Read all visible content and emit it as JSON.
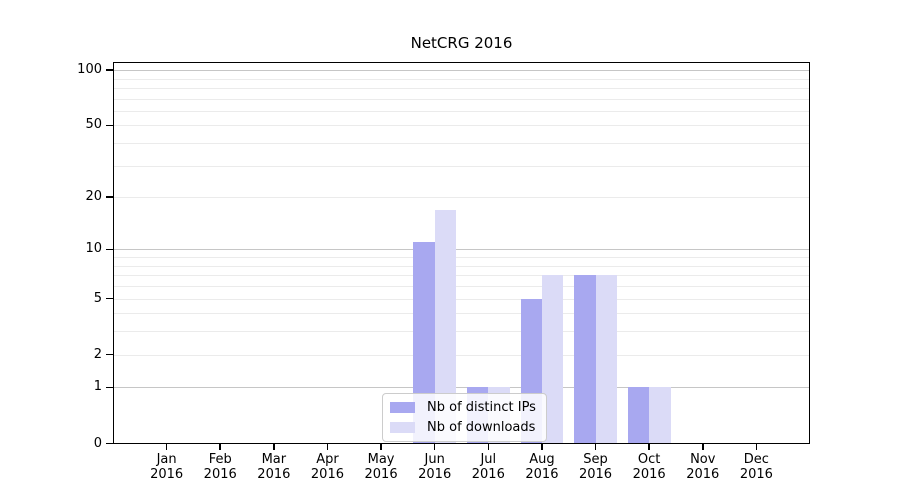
{
  "title": "NetCRG 2016",
  "chart_data": {
    "type": "bar",
    "title": "NetCRG 2016",
    "months": [
      "Jan",
      "Feb",
      "Mar",
      "Apr",
      "May",
      "Jun",
      "Jul",
      "Aug",
      "Sep",
      "Oct",
      "Nov",
      "Dec"
    ],
    "year": "2016",
    "series": [
      {
        "name": "Nb of distinct IPs",
        "color": "#a8a8f0",
        "values": [
          0,
          0,
          0,
          0,
          0,
          11,
          1,
          5,
          7,
          1,
          0,
          0
        ]
      },
      {
        "name": "Nb of downloads",
        "color": "#dbdbf7",
        "values": [
          0,
          0,
          0,
          0,
          0,
          17,
          1,
          7,
          7,
          1,
          0,
          0
        ]
      }
    ],
    "yscale": "log(1+v)",
    "ylim": [
      0,
      110
    ],
    "y_ticks": [
      0,
      1,
      2,
      5,
      10,
      20,
      50,
      100
    ],
    "grid_major": [
      1,
      10,
      100
    ],
    "grid_minor": [
      2,
      3,
      4,
      5,
      6,
      7,
      8,
      9,
      20,
      30,
      40,
      50,
      60,
      70,
      80,
      90
    ],
    "grid_on": true,
    "legend_position": "lower-center",
    "axis_color": "#000000",
    "grid_major_color": "#c6c6c6",
    "grid_minor_color": "#ebebeb"
  }
}
